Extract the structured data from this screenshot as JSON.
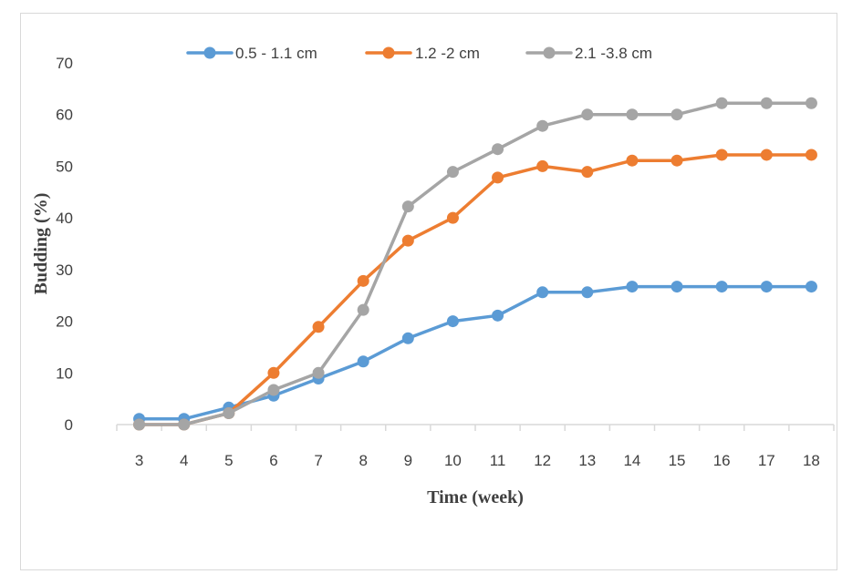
{
  "chart_data": {
    "type": "line",
    "xlabel": "Time (week)",
    "ylabel": "Budding (%)",
    "ylim": [
      0,
      70
    ],
    "yticks": [
      0,
      10,
      20,
      30,
      40,
      50,
      60,
      70
    ],
    "x": [
      3,
      4,
      5,
      6,
      7,
      8,
      9,
      10,
      11,
      12,
      13,
      14,
      15,
      16,
      17,
      18
    ],
    "legend_position": "top",
    "grid": false,
    "series": [
      {
        "name": "0.5 - 1.1 cm",
        "color": "#5b9bd5",
        "values": [
          1.1,
          1.1,
          3.3,
          5.6,
          8.9,
          12.2,
          16.7,
          20.0,
          21.1,
          25.6,
          25.6,
          26.7,
          26.7,
          26.7,
          26.7,
          26.7
        ]
      },
      {
        "name": "1.2 -2 cm",
        "color": "#ed7d31",
        "values": [
          0,
          0,
          2.2,
          10.0,
          18.9,
          27.8,
          35.6,
          40.0,
          47.8,
          50.0,
          48.9,
          51.1,
          51.1,
          52.2,
          52.2,
          52.2
        ]
      },
      {
        "name": "2.1 -3.8 cm",
        "color": "#a5a5a5",
        "values": [
          0,
          0,
          2.2,
          6.7,
          10.0,
          22.2,
          42.2,
          48.9,
          53.3,
          57.8,
          60.0,
          60.0,
          60.0,
          62.2,
          62.2,
          62.2
        ]
      }
    ]
  }
}
